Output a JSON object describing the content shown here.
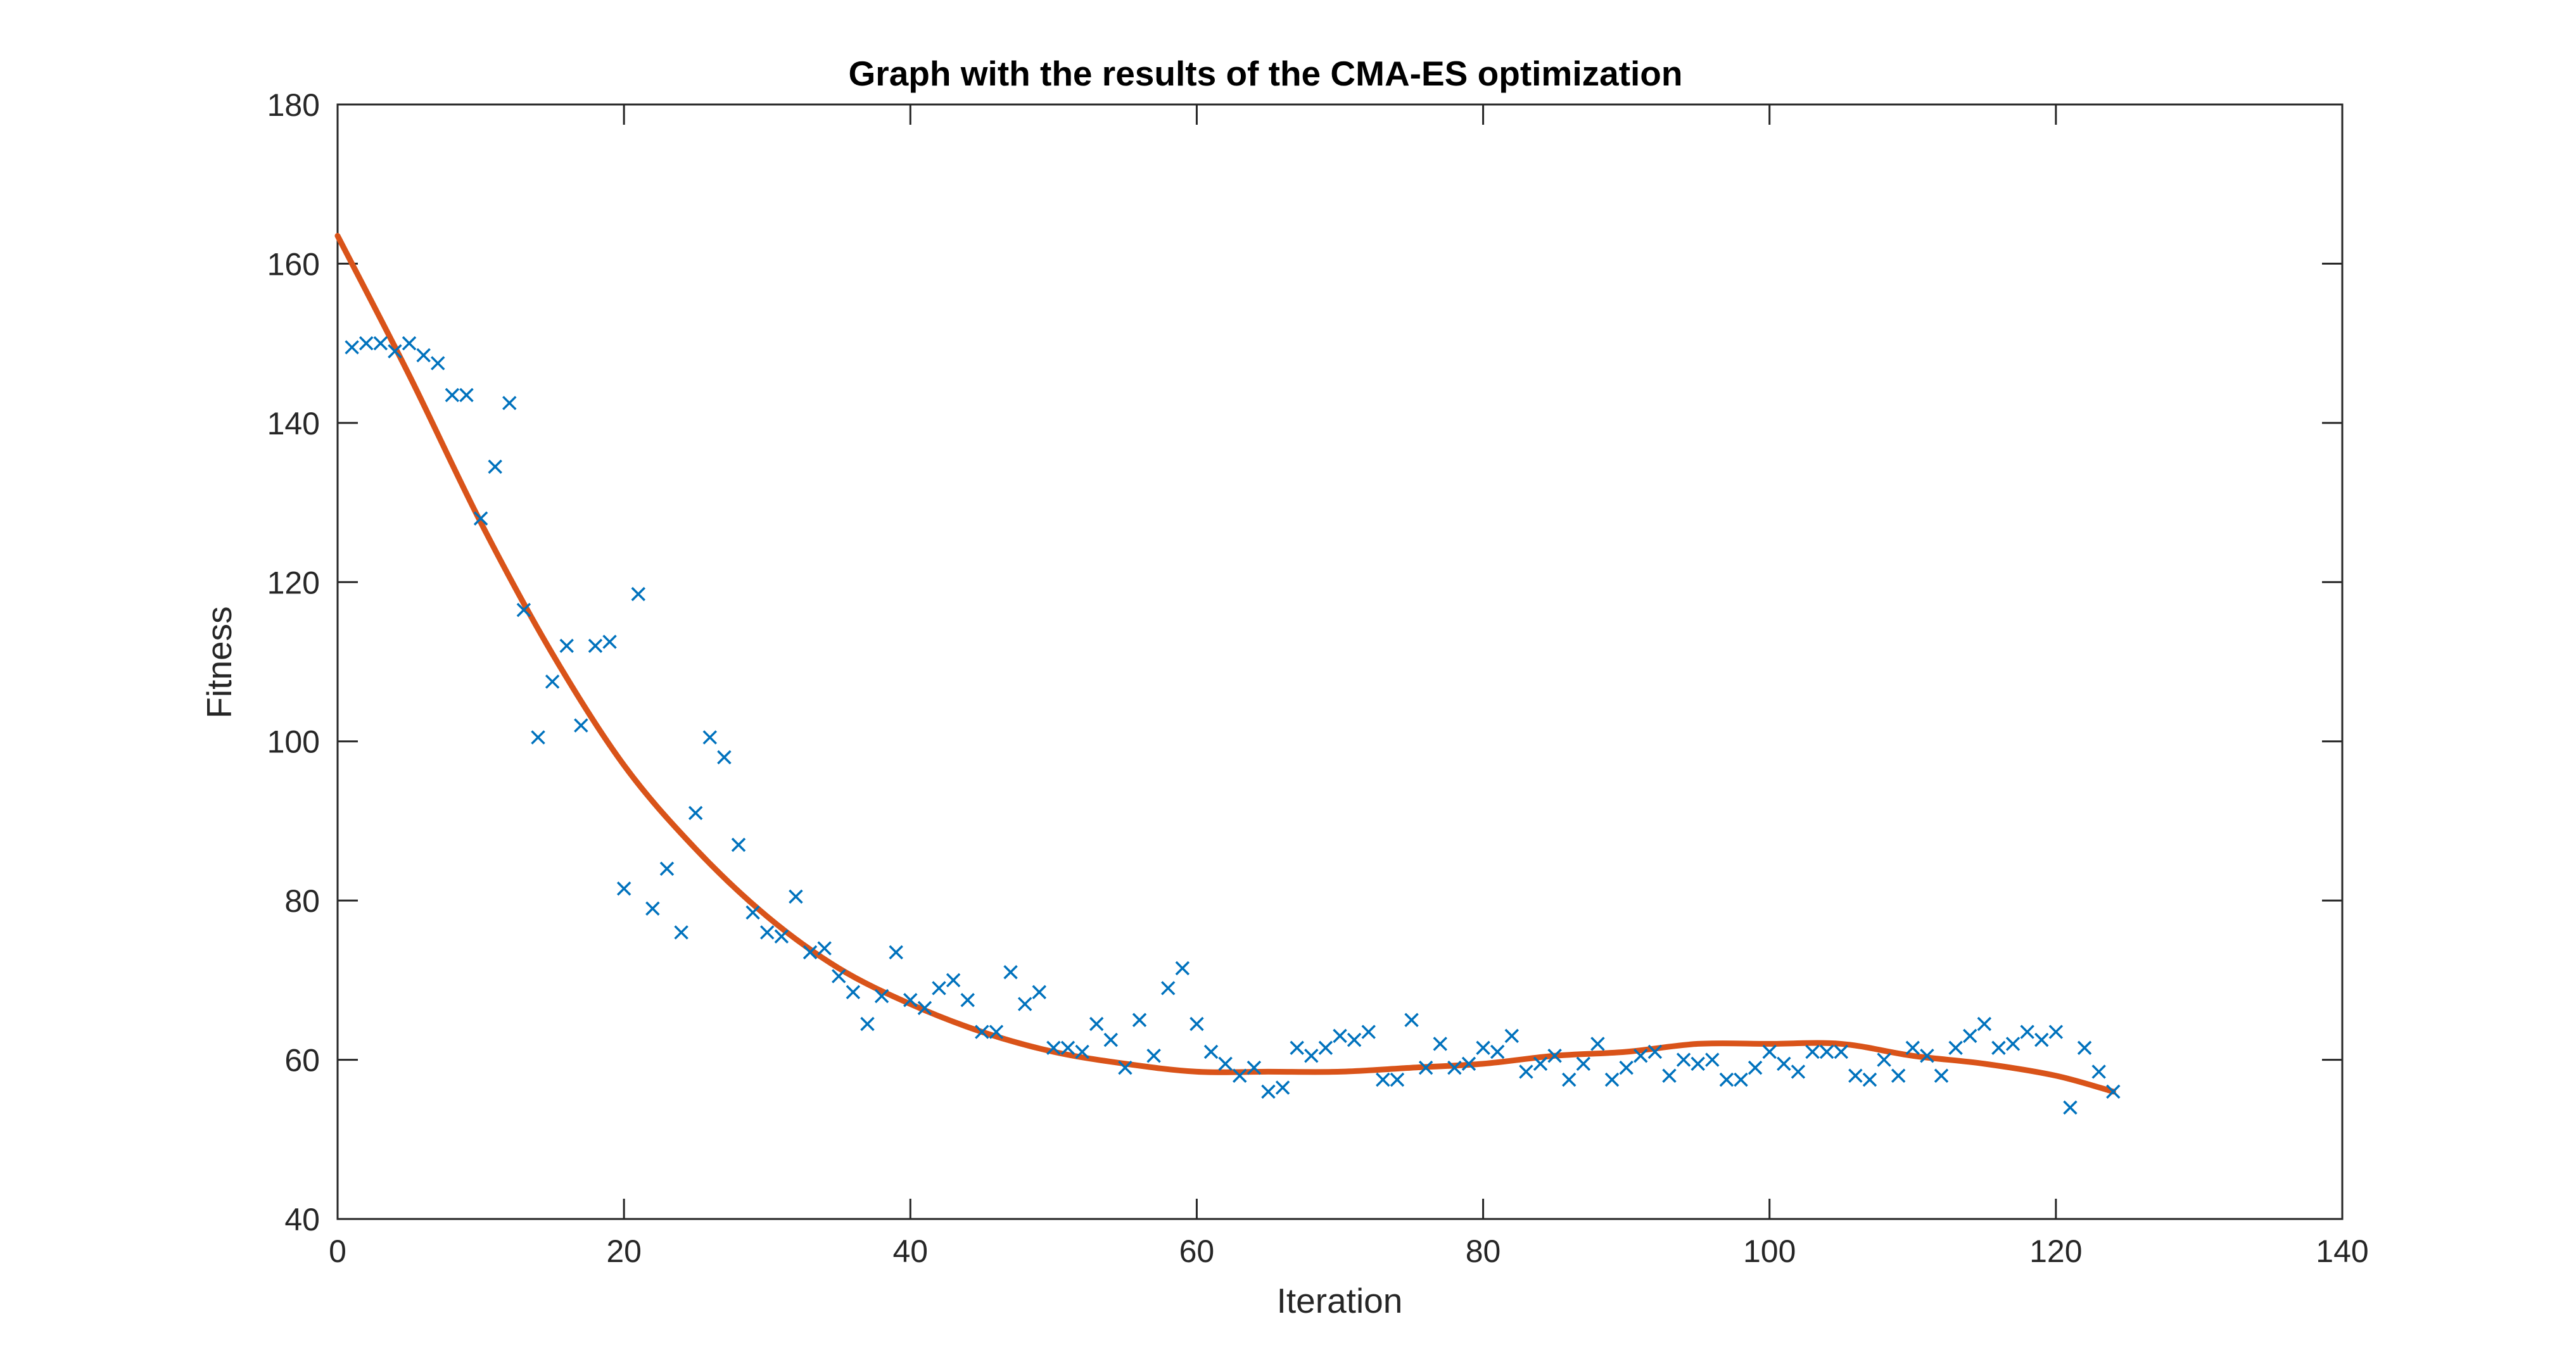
{
  "chart_data": {
    "type": "scatter",
    "title": "Graph with the results of the CMA-ES optimization",
    "xlabel": "Iteration",
    "ylabel": "Fitness",
    "xlim": [
      0,
      140
    ],
    "ylim": [
      40,
      180
    ],
    "xticks": [
      0,
      20,
      40,
      60,
      80,
      100,
      120,
      140
    ],
    "yticks": [
      40,
      60,
      80,
      100,
      120,
      140,
      160,
      180
    ],
    "grid": false,
    "colors": {
      "scatter": "#0072BD",
      "fit": "#D95319",
      "axes": "#262626"
    },
    "series": [
      {
        "kind": "scatter",
        "marker": "x",
        "x": [
          1,
          2,
          3,
          4,
          5,
          6,
          7,
          8,
          9,
          10,
          11,
          12,
          13,
          14,
          15,
          16,
          17,
          18,
          19,
          20,
          21,
          22,
          23,
          24,
          25,
          26,
          27,
          28,
          29,
          30,
          31,
          32,
          33,
          34,
          35,
          36,
          37,
          38,
          39,
          40,
          41,
          42,
          43,
          44,
          45,
          46,
          47,
          48,
          49,
          50,
          51,
          52,
          53,
          54,
          55,
          56,
          57,
          58,
          59,
          60,
          61,
          62,
          63,
          64,
          65,
          66,
          67,
          68,
          69,
          70,
          71,
          72,
          73,
          74,
          75,
          76,
          77,
          78,
          79,
          80,
          81,
          82,
          83,
          84,
          85,
          86,
          87,
          88,
          89,
          90,
          91,
          92,
          93,
          94,
          95,
          96,
          97,
          98,
          99,
          100,
          101,
          102,
          103,
          104,
          105,
          106,
          107,
          108,
          109,
          110,
          111,
          112,
          113,
          114,
          115,
          116,
          117,
          118,
          119,
          120,
          121,
          122,
          123,
          124
        ],
        "y": [
          149.5,
          150,
          150,
          149,
          150,
          148.5,
          147.5,
          143.5,
          143.5,
          128,
          134.5,
          142.5,
          116.5,
          100.5,
          107.5,
          112,
          102,
          112,
          112.5,
          81.5,
          118.5,
          79,
          84,
          76,
          91,
          100.5,
          98,
          87,
          78.5,
          76,
          75.5,
          80.5,
          73.5,
          74,
          70.5,
          68.5,
          64.5,
          68,
          73.5,
          67.5,
          66.5,
          69,
          70,
          67.5,
          63.5,
          63.5,
          71,
          67,
          68.5,
          61.5,
          61.5,
          61,
          64.5,
          62.5,
          59,
          65,
          60.5,
          69,
          71.5,
          64.5,
          61,
          59.5,
          58,
          59,
          56,
          56.5,
          61.5,
          60.5,
          61.5,
          63,
          62.5,
          63.5,
          57.5,
          57.5,
          65,
          59,
          62,
          59,
          59.5,
          61.5,
          61,
          63,
          58.5,
          59.5,
          60.5,
          57.5,
          59.5,
          62,
          57.5,
          59,
          60.5,
          61,
          58,
          60,
          59.5,
          60,
          57.5,
          57.5,
          59,
          61,
          59.5,
          58.5,
          61,
          61,
          61,
          58,
          57.5,
          60,
          58,
          61.5,
          60.5,
          58,
          61.5,
          63,
          64.5,
          61.5,
          62,
          63.5,
          62.5,
          63.5,
          54,
          61.5,
          58.5,
          56
        ]
      },
      {
        "kind": "line",
        "x": [
          0,
          5,
          10,
          15,
          20,
          25,
          30,
          35,
          40,
          45,
          50,
          55,
          60,
          65,
          70,
          75,
          80,
          85,
          90,
          95,
          100,
          105,
          110,
          115,
          120,
          124
        ],
        "y": [
          163.5,
          146,
          127.5,
          111,
          97,
          86.5,
          78,
          71.5,
          67,
          63.5,
          61,
          59.5,
          58.5,
          58.5,
          58.5,
          59,
          59.5,
          60.5,
          61,
          62,
          62,
          62,
          60.5,
          59.5,
          58,
          56
        ]
      }
    ]
  }
}
